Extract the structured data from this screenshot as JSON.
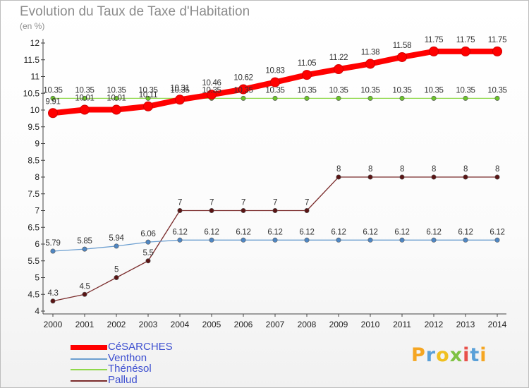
{
  "chart_data": {
    "type": "line",
    "title": "Evolution du Taux de Taxe d'Habitation",
    "subtitle": "(en %)",
    "x": [
      2000,
      2001,
      2002,
      2003,
      2004,
      2005,
      2006,
      2007,
      2008,
      2009,
      2010,
      2011,
      2012,
      2013,
      2014
    ],
    "ylim": [
      4,
      12
    ],
    "yticks": [
      4,
      4.5,
      5,
      5.5,
      6,
      6.5,
      7,
      7.5,
      8,
      8.5,
      9,
      9.5,
      10,
      10.5,
      11,
      11.5,
      12
    ],
    "ytick_labels": [
      "4",
      "4.5",
      "5",
      "5.5",
      "6",
      "6.5",
      "7",
      "7.5",
      "8",
      "8.5",
      "9",
      "9.5",
      "10",
      "10.5",
      "11",
      "11.5",
      "12"
    ],
    "grid": false,
    "legend_position": "bottom-left",
    "series": [
      {
        "name": "CéSARCHES",
        "color": "#ff0000",
        "marker_color": "#ff0000",
        "values": [
          9.91,
          10.01,
          10.01,
          10.11,
          10.31,
          10.46,
          10.62,
          10.83,
          11.05,
          11.22,
          11.38,
          11.58,
          11.75,
          11.75,
          11.75
        ],
        "labels": [
          "9.91",
          "10.01",
          "10.01",
          "10.11",
          "10.31",
          "10.46",
          "10.62",
          "10.83",
          "11.05",
          "11.22",
          "11.38",
          "11.58",
          "11.75",
          "11.75",
          "11.75"
        ]
      },
      {
        "name": "Venthon",
        "color": "#6b9ed0",
        "marker_color": "#4f87c4",
        "values": [
          5.79,
          5.85,
          5.94,
          6.06,
          6.12,
          6.12,
          6.12,
          6.12,
          6.12,
          6.12,
          6.12,
          6.12,
          6.12,
          6.12,
          6.12
        ],
        "labels": [
          "5.79",
          "5.85",
          "5.94",
          "6.06",
          "6.12",
          "6.12",
          "6.12",
          "6.12",
          "6.12",
          "6.12",
          "6.12",
          "6.12",
          "6.12",
          "6.12",
          "6.12"
        ]
      },
      {
        "name": "Thénésol",
        "color": "#8fd84a",
        "marker_color": "#6cc42c",
        "values": [
          10.35,
          10.35,
          10.35,
          10.35,
          10.35,
          10.35,
          10.35,
          10.35,
          10.35,
          10.35,
          10.35,
          10.35,
          10.35,
          10.35,
          10.35
        ],
        "labels": [
          "10.35",
          "10.35",
          "10.35",
          "10.35",
          "10.35",
          "10.35",
          "10.35",
          "10.35",
          "10.35",
          "10.35",
          "10.35",
          "10.35",
          "10.35",
          "10.35",
          "10.35"
        ]
      },
      {
        "name": "Pallud",
        "color": "#7a2b2b",
        "marker_color": "#5a1414",
        "values": [
          4.3,
          4.5,
          5,
          5.5,
          7,
          7,
          7,
          7,
          7,
          8,
          8,
          8,
          8,
          8,
          8
        ],
        "labels": [
          "4.3",
          "4.5",
          "5",
          "5.5",
          "7",
          "7",
          "7",
          "7",
          "7",
          "8",
          "8",
          "8",
          "8",
          "8",
          "8"
        ]
      }
    ]
  },
  "logo": {
    "text": "Proxiti",
    "letters": [
      "P",
      "r",
      "o",
      "x",
      "i",
      "t",
      "i"
    ],
    "colors": [
      "#f5a623",
      "#5aa0d8",
      "#f0c020",
      "#7fc244",
      "#e8504a",
      "#5aa0d8",
      "#f5a623"
    ]
  }
}
